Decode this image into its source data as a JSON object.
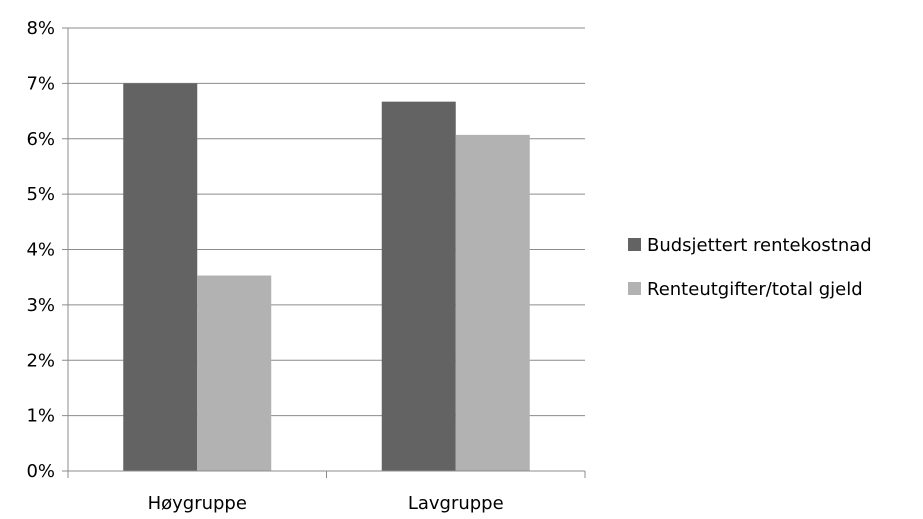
{
  "chart_data": {
    "type": "bar",
    "title": "",
    "xlabel": "",
    "ylabel": "",
    "categories": [
      "Høygruppe",
      "Lavgruppe"
    ],
    "series": [
      {
        "name": "Budsjettert rentekostnad",
        "values": [
          0.07,
          0.0667
        ],
        "color": "#636363"
      },
      {
        "name": "Renteutgifter/total gjeld",
        "values": [
          0.0353,
          0.0607
        ],
        "color": "#b2b2b2"
      }
    ],
    "ylim": [
      0,
      0.08
    ],
    "yticks": [
      0,
      0.01,
      0.02,
      0.03,
      0.04,
      0.05,
      0.06,
      0.07,
      0.08
    ],
    "ytick_labels": [
      "0%",
      "1%",
      "2%",
      "3%",
      "4%",
      "5%",
      "6%",
      "7%",
      "8%"
    ],
    "grid": true,
    "legend_position": "right"
  }
}
